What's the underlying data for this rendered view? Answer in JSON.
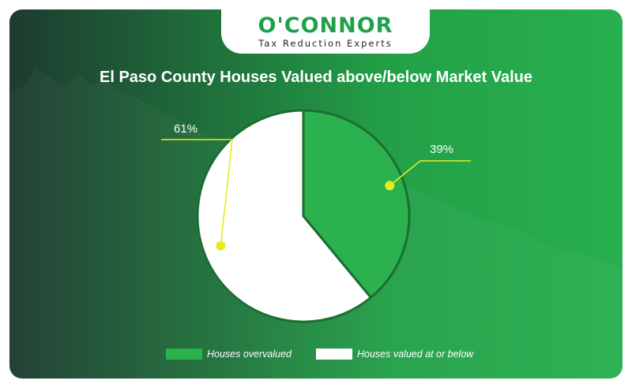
{
  "logo": {
    "name": "O'CONNOR",
    "tagline": "Tax Reduction Experts"
  },
  "colors": {
    "overvalued": "#2bb24f",
    "at_or_below": "#ffffff",
    "leader": "#e8ec1f"
  },
  "chart_data": {
    "type": "pie",
    "title": "El Paso County Houses Valued above/below Market Value",
    "slices": [
      {
        "label": "Houses overvalued",
        "value": 39,
        "display": "39%"
      },
      {
        "label": "Houses valued at or below",
        "value": 61,
        "display": "61%"
      }
    ],
    "legend_position": "bottom"
  }
}
